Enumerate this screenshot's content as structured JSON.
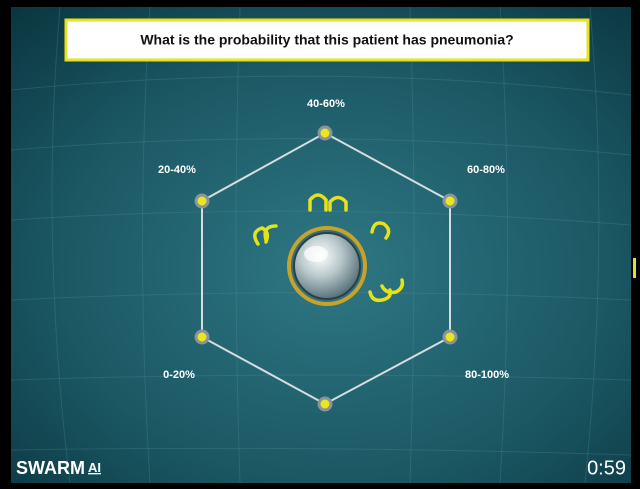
{
  "question": "What is the probability that this patient has pneumonia?",
  "options": [
    "40-60%",
    "60-80%",
    "80-100%",
    "0-20%",
    "20-40%"
  ],
  "brand": {
    "name": "SWARM",
    "suffix": "AI"
  },
  "timer": "0:59"
}
